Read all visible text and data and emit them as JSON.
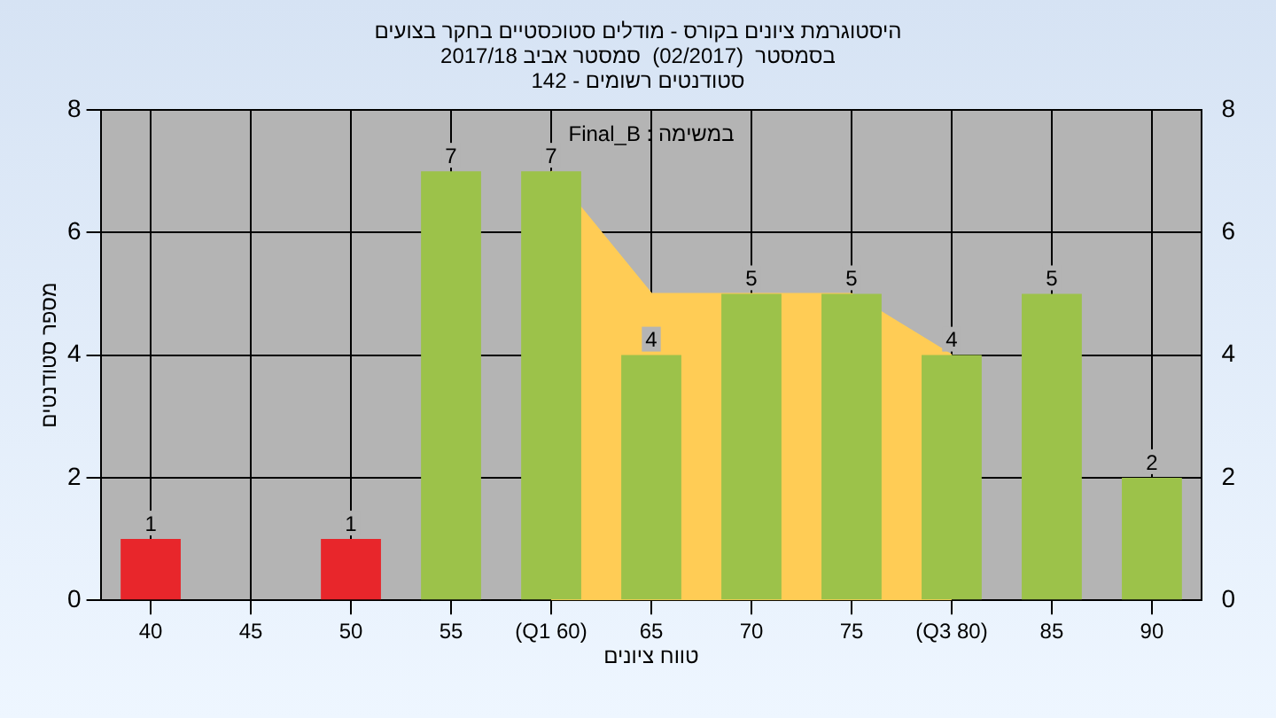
{
  "chart_data": {
    "type": "bar",
    "title": "היסטוגרמת ציונים בקורס - מודלים סטוכסטיים בחקר בצועים",
    "subtitle": "בסמסטר  (02/2017)  סמסטר אביב 2017/18\nסטודנטים רשומים - 142",
    "xlabel": "טווח ציונים",
    "ylabel": "מספר סטודנטים",
    "annotations": [
      "במשימה : Final_B"
    ],
    "categories": [
      "40",
      "45",
      "50",
      "55",
      "(Q1 60)",
      "65",
      "70",
      "75",
      "(Q3 80)",
      "85",
      "90"
    ],
    "series": [
      {
        "colors": [
          "#e8262b",
          "#9cc24a",
          "#e8262b",
          "#9cc24a",
          "#9cc24a",
          "#9cc24a",
          "#9cc24a",
          "#9cc24a",
          "#9cc24a",
          "#9cc24a",
          "#9cc24a"
        ],
        "values": [
          1,
          0,
          1,
          7,
          7,
          4,
          5,
          5,
          4,
          5,
          2
        ],
        "value_labels": [
          "1",
          null,
          "1",
          "7",
          "7",
          "4",
          "5",
          "5",
          "4",
          "5",
          "2"
        ]
      },
      {
        "type": "area",
        "color": "#ffcc55",
        "values": [
          null,
          null,
          null,
          null,
          7,
          5,
          5,
          5,
          4,
          null,
          null
        ]
      }
    ],
    "ylim": [
      0,
      8
    ],
    "yticks": [
      0,
      2,
      4,
      6,
      8
    ],
    "y2lim": [
      0,
      8
    ],
    "y2ticks": [
      0,
      2,
      4,
      6,
      8
    ],
    "grid": true,
    "legend": false
  }
}
